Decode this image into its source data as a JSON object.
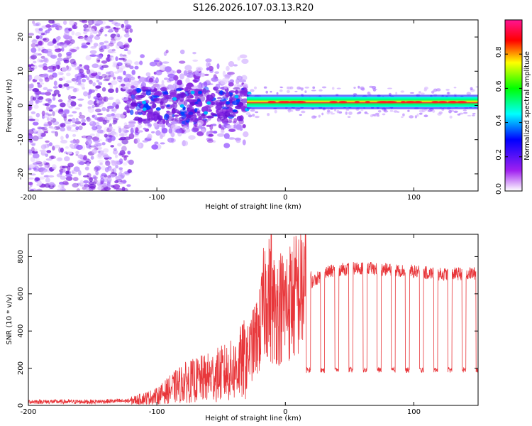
{
  "title": "S126.2026.107.03.13.R20",
  "colors": {
    "snr_line": "#e8363a",
    "band_core": "#ff2020",
    "speckle": "#8a2be2"
  },
  "chart_data": [
    {
      "type": "heatmap",
      "name": "spectrogram",
      "xlabel": "Height of straight line (km)",
      "ylabel": "Frequency (Hz)",
      "xlim": [
        -200,
        150
      ],
      "ylim": [
        -25,
        25
      ],
      "xticks": [
        -200,
        -100,
        0,
        100
      ],
      "yticks": [
        -20,
        -10,
        0,
        10,
        20
      ],
      "colorbar": {
        "label": "Normalized spectral amplitude",
        "range": [
          0,
          1
        ],
        "ticks": [
          "0.0",
          "0.2",
          "0.4",
          "0.6",
          "0.8"
        ],
        "tick_values": [
          0.0,
          0.2,
          0.4,
          0.6,
          0.8
        ],
        "colormap": [
          "#ffffff",
          "#a020f0",
          "#0000ff",
          "#00ffff",
          "#00ff00",
          "#ffff00",
          "#ff0000",
          "#ff1493"
        ]
      },
      "regions": [
        {
          "x_range": [
            -200,
            -120
          ],
          "freq_range": [
            -25,
            25
          ],
          "description": "low-amplitude noise"
        },
        {
          "x_range": [
            -120,
            -30
          ],
          "freq_range": [
            -15,
            15
          ],
          "description": "broadening signal"
        },
        {
          "x_range": [
            -30,
            150
          ],
          "freq_center": 1,
          "freq_width": 3,
          "peak_amplitude": 0.9
        }
      ]
    },
    {
      "type": "line",
      "name": "snr",
      "xlabel": "Height of straight line (km)",
      "ylabel": "SNR (10 * v/v)",
      "xlim": [
        -200,
        150
      ],
      "ylim": [
        0,
        920
      ],
      "xticks": [
        -200,
        -100,
        0,
        100
      ],
      "yticks": [
        0,
        200,
        400,
        600,
        800
      ],
      "series": [
        {
          "name": "SNR",
          "x": [
            -200,
            -150,
            -120,
            -100,
            -80,
            -60,
            -40,
            -30,
            -20,
            -15,
            -10,
            0,
            10,
            20,
            30,
            40,
            60,
            80,
            100,
            120,
            150
          ],
          "values": [
            20,
            20,
            25,
            50,
            120,
            150,
            190,
            260,
            400,
            620,
            520,
            540,
            600,
            660,
            710,
            730,
            740,
            730,
            720,
            705,
            710
          ],
          "spike": {
            "x": -11,
            "value": 920
          },
          "dropouts": {
            "x_start": 18,
            "spacing": 11,
            "count": 13,
            "value": 190
          }
        }
      ]
    }
  ]
}
